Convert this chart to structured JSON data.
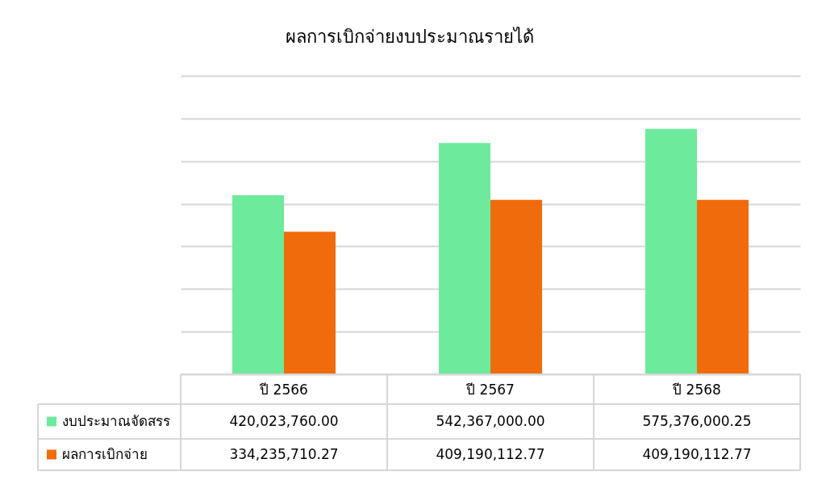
{
  "chart_data": {
    "type": "bar",
    "title": "ผลการเบิกจ่ายงบประมาณรายได้",
    "categories": [
      "ปี 2566",
      "ปี 2567",
      "ปี 2568"
    ],
    "series": [
      {
        "name": "งบประมาณจัดสรร",
        "color": "#6eea9c",
        "values": [
          420023760.0,
          542367000.0,
          575376000.25
        ],
        "value_labels": [
          "420,023,760.00",
          "542,367,000.00",
          "575,376,000.25"
        ]
      },
      {
        "name": "ผลการเบิกจ่าย",
        "color": "#f06b0c",
        "values": [
          334235710.27,
          409190112.77,
          409190112.77
        ],
        "value_labels": [
          "334,235,710.27",
          "409,190,112.77",
          "409,190,112.77"
        ]
      }
    ],
    "ylim": [
      0,
      700000000
    ],
    "yticks": [
      0,
      100000000,
      200000000,
      300000000,
      400000000,
      500000000,
      600000000,
      700000000
    ],
    "grid": "y",
    "tick_labels": "x",
    "legend": "bottom left"
  }
}
